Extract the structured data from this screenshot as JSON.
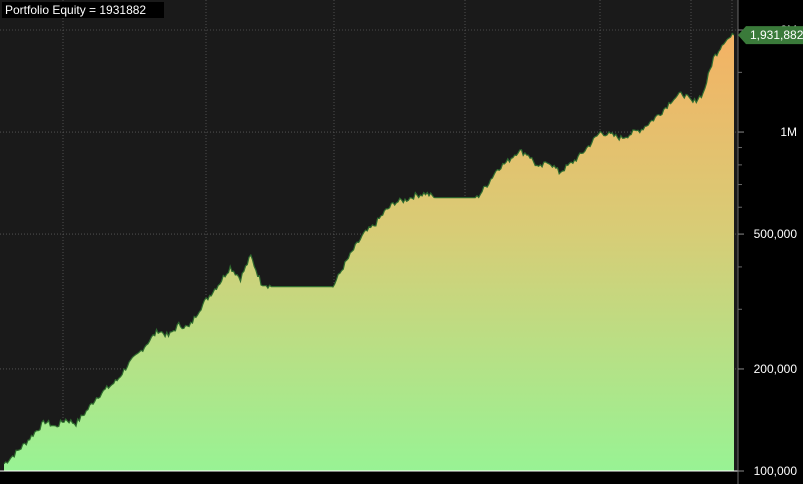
{
  "chart_data": {
    "type": "area",
    "title": "Portfolio Equity = 1931882",
    "last_value_label": "1,931,882",
    "y_scale": "log",
    "ylim": [
      100000,
      2000000
    ],
    "y_ticks": [
      {
        "value": 100000,
        "label": "100,000"
      },
      {
        "value": 200000,
        "label": "200,000"
      },
      {
        "value": 500000,
        "label": "500,000"
      },
      {
        "value": 1000000,
        "label": "1M"
      },
      {
        "value": 2000000,
        "label": "2M"
      }
    ],
    "x_gridline_count": 7,
    "grid": true,
    "series": [
      {
        "values": [
          105000,
          112000,
          120000,
          130000,
          140000,
          135000,
          142000,
          138000,
          150000,
          165000,
          175000,
          185000,
          205000,
          220000,
          240000,
          260000,
          250000,
          270000,
          265000,
          300000,
          330000,
          360000,
          400000,
          370000,
          430000,
          360000,
          350000,
          350000,
          350000,
          350000,
          350000,
          350000,
          350000,
          400000,
          450000,
          500000,
          530000,
          580000,
          620000,
          630000,
          650000,
          660000,
          640000,
          640000,
          640000,
          640000,
          640000,
          700000,
          780000,
          820000,
          880000,
          860000,
          780000,
          820000,
          760000,
          800000,
          850000,
          920000,
          1000000,
          980000,
          960000,
          990000,
          1020000,
          1080000,
          1150000,
          1250000,
          1300000,
          1220000,
          1300000,
          1650000,
          1850000,
          1931882
        ]
      }
    ],
    "colors": {
      "background": "#000000",
      "plot_background": "#1a1a1a",
      "gridline": "#5a5a5a",
      "line": "#2f6b2f",
      "fill_top": "#f4b264",
      "fill_mid": "#d8cc76",
      "fill_bottom": "#98f394",
      "label_box": "#3a7a3a"
    }
  }
}
